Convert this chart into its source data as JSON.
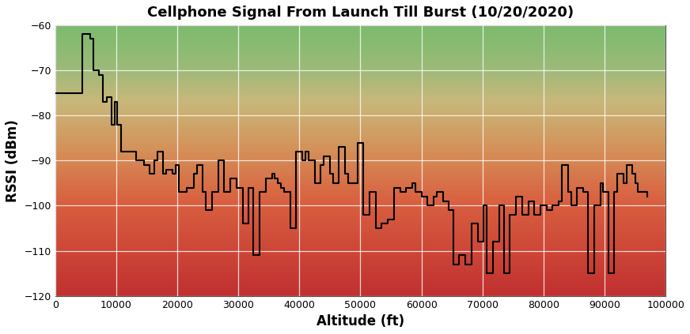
{
  "title": "Cellphone Signal From Launch Till Burst (10/20/2020)",
  "xlabel": "Altitude (ft)",
  "ylabel": "RSSI (dBm)",
  "xlim": [
    0,
    100000
  ],
  "ylim": [
    -120,
    -60
  ],
  "yticks": [
    -120,
    -110,
    -100,
    -90,
    -80,
    -70,
    -60
  ],
  "xticks": [
    0,
    10000,
    20000,
    30000,
    40000,
    50000,
    60000,
    70000,
    80000,
    90000,
    100000
  ],
  "xticklabels": [
    "0",
    "10000",
    "20000",
    "30000",
    "40000",
    "50000",
    "60000",
    "70000",
    "80000",
    "90000",
    "100000"
  ],
  "line_color": "#000000",
  "line_width": 1.5,
  "grid_color": "#ffffff",
  "grid_alpha": 0.8,
  "signal_data": [
    [
      0,
      -75
    ],
    [
      3500,
      -75
    ],
    [
      4500,
      -62
    ],
    [
      5200,
      -62
    ],
    [
      5700,
      -63
    ],
    [
      6300,
      -70
    ],
    [
      7200,
      -71
    ],
    [
      7800,
      -77
    ],
    [
      8500,
      -76
    ],
    [
      9200,
      -82
    ],
    [
      9800,
      -77
    ],
    [
      10200,
      -82
    ],
    [
      10800,
      -88
    ],
    [
      12500,
      -88
    ],
    [
      13200,
      -90
    ],
    [
      14500,
      -91
    ],
    [
      15500,
      -93
    ],
    [
      16200,
      -90
    ],
    [
      16800,
      -88
    ],
    [
      17200,
      -88
    ],
    [
      17700,
      -93
    ],
    [
      18200,
      -92
    ],
    [
      18700,
      -92
    ],
    [
      19200,
      -93
    ],
    [
      19700,
      -91
    ],
    [
      20200,
      -97
    ],
    [
      21000,
      -97
    ],
    [
      21500,
      -96
    ],
    [
      22200,
      -96
    ],
    [
      22700,
      -93
    ],
    [
      23200,
      -91
    ],
    [
      23700,
      -91
    ],
    [
      24200,
      -97
    ],
    [
      24700,
      -101
    ],
    [
      25200,
      -101
    ],
    [
      25700,
      -97
    ],
    [
      26200,
      -97
    ],
    [
      26700,
      -90
    ],
    [
      27200,
      -90
    ],
    [
      27700,
      -97
    ],
    [
      28200,
      -97
    ],
    [
      28700,
      -94
    ],
    [
      29200,
      -94
    ],
    [
      29700,
      -96
    ],
    [
      30200,
      -96
    ],
    [
      30700,
      -104
    ],
    [
      31200,
      -104
    ],
    [
      31700,
      -96
    ],
    [
      32200,
      -96
    ],
    [
      32500,
      -111
    ],
    [
      33000,
      -111
    ],
    [
      33500,
      -97
    ],
    [
      34000,
      -97
    ],
    [
      34500,
      -94
    ],
    [
      35000,
      -94
    ],
    [
      35500,
      -93
    ],
    [
      36000,
      -94
    ],
    [
      36500,
      -95
    ],
    [
      37000,
      -96
    ],
    [
      37500,
      -97
    ],
    [
      38000,
      -97
    ],
    [
      38500,
      -105
    ],
    [
      39000,
      -105
    ],
    [
      39500,
      -88
    ],
    [
      40000,
      -88
    ],
    [
      40500,
      -90
    ],
    [
      41000,
      -88
    ],
    [
      41500,
      -90
    ],
    [
      42000,
      -90
    ],
    [
      42500,
      -95
    ],
    [
      43000,
      -95
    ],
    [
      43500,
      -91
    ],
    [
      44000,
      -89
    ],
    [
      44500,
      -89
    ],
    [
      45000,
      -93
    ],
    [
      45500,
      -95
    ],
    [
      46000,
      -95
    ],
    [
      46500,
      -87
    ],
    [
      47000,
      -87
    ],
    [
      47500,
      -93
    ],
    [
      48000,
      -95
    ],
    [
      48500,
      -95
    ],
    [
      49000,
      -95
    ],
    [
      49500,
      -86
    ],
    [
      50000,
      -86
    ],
    [
      50500,
      -102
    ],
    [
      51000,
      -102
    ],
    [
      51500,
      -97
    ],
    [
      52000,
      -97
    ],
    [
      52500,
      -105
    ],
    [
      53000,
      -105
    ],
    [
      53500,
      -104
    ],
    [
      54000,
      -104
    ],
    [
      54500,
      -103
    ],
    [
      55000,
      -103
    ],
    [
      55500,
      -96
    ],
    [
      56000,
      -96
    ],
    [
      56500,
      -97
    ],
    [
      57000,
      -97
    ],
    [
      57500,
      -96
    ],
    [
      58000,
      -96
    ],
    [
      58500,
      -95
    ],
    [
      59000,
      -97
    ],
    [
      59500,
      -97
    ],
    [
      60000,
      -98
    ],
    [
      60500,
      -98
    ],
    [
      61000,
      -100
    ],
    [
      61500,
      -100
    ],
    [
      62000,
      -98
    ],
    [
      62500,
      -97
    ],
    [
      63000,
      -97
    ],
    [
      63500,
      -99
    ],
    [
      64000,
      -99
    ],
    [
      64500,
      -101
    ],
    [
      65000,
      -101
    ],
    [
      65300,
      -113
    ],
    [
      65800,
      -113
    ],
    [
      66200,
      -111
    ],
    [
      66700,
      -111
    ],
    [
      67200,
      -113
    ],
    [
      67700,
      -113
    ],
    [
      68200,
      -104
    ],
    [
      68700,
      -104
    ],
    [
      69200,
      -108
    ],
    [
      69700,
      -108
    ],
    [
      70200,
      -100
    ],
    [
      70500,
      -100
    ],
    [
      70700,
      -115
    ],
    [
      71200,
      -115
    ],
    [
      71700,
      -108
    ],
    [
      72200,
      -108
    ],
    [
      72700,
      -100
    ],
    [
      73200,
      -100
    ],
    [
      73500,
      -115
    ],
    [
      74000,
      -115
    ],
    [
      74500,
      -102
    ],
    [
      75000,
      -102
    ],
    [
      75500,
      -98
    ],
    [
      76000,
      -98
    ],
    [
      76500,
      -102
    ],
    [
      77000,
      -102
    ],
    [
      77500,
      -99
    ],
    [
      78000,
      -99
    ],
    [
      78500,
      -102
    ],
    [
      79000,
      -102
    ],
    [
      79500,
      -100
    ],
    [
      80000,
      -100
    ],
    [
      80500,
      -101
    ],
    [
      81000,
      -101
    ],
    [
      81500,
      -100
    ],
    [
      82000,
      -100
    ],
    [
      82500,
      -99
    ],
    [
      83000,
      -91
    ],
    [
      83500,
      -91
    ],
    [
      84000,
      -97
    ],
    [
      84500,
      -100
    ],
    [
      85000,
      -100
    ],
    [
      85500,
      -96
    ],
    [
      86000,
      -96
    ],
    [
      86500,
      -97
    ],
    [
      87000,
      -97
    ],
    [
      87300,
      -115
    ],
    [
      87800,
      -115
    ],
    [
      88300,
      -100
    ],
    [
      88800,
      -100
    ],
    [
      89300,
      -95
    ],
    [
      89800,
      -97
    ],
    [
      90300,
      -97
    ],
    [
      90600,
      -115
    ],
    [
      91100,
      -115
    ],
    [
      91600,
      -97
    ],
    [
      92100,
      -93
    ],
    [
      92600,
      -93
    ],
    [
      93100,
      -95
    ],
    [
      93600,
      -91
    ],
    [
      94100,
      -91
    ],
    [
      94600,
      -93
    ],
    [
      95000,
      -95
    ],
    [
      95500,
      -97
    ],
    [
      96000,
      -97
    ],
    [
      96500,
      -97
    ],
    [
      97000,
      -98
    ]
  ]
}
